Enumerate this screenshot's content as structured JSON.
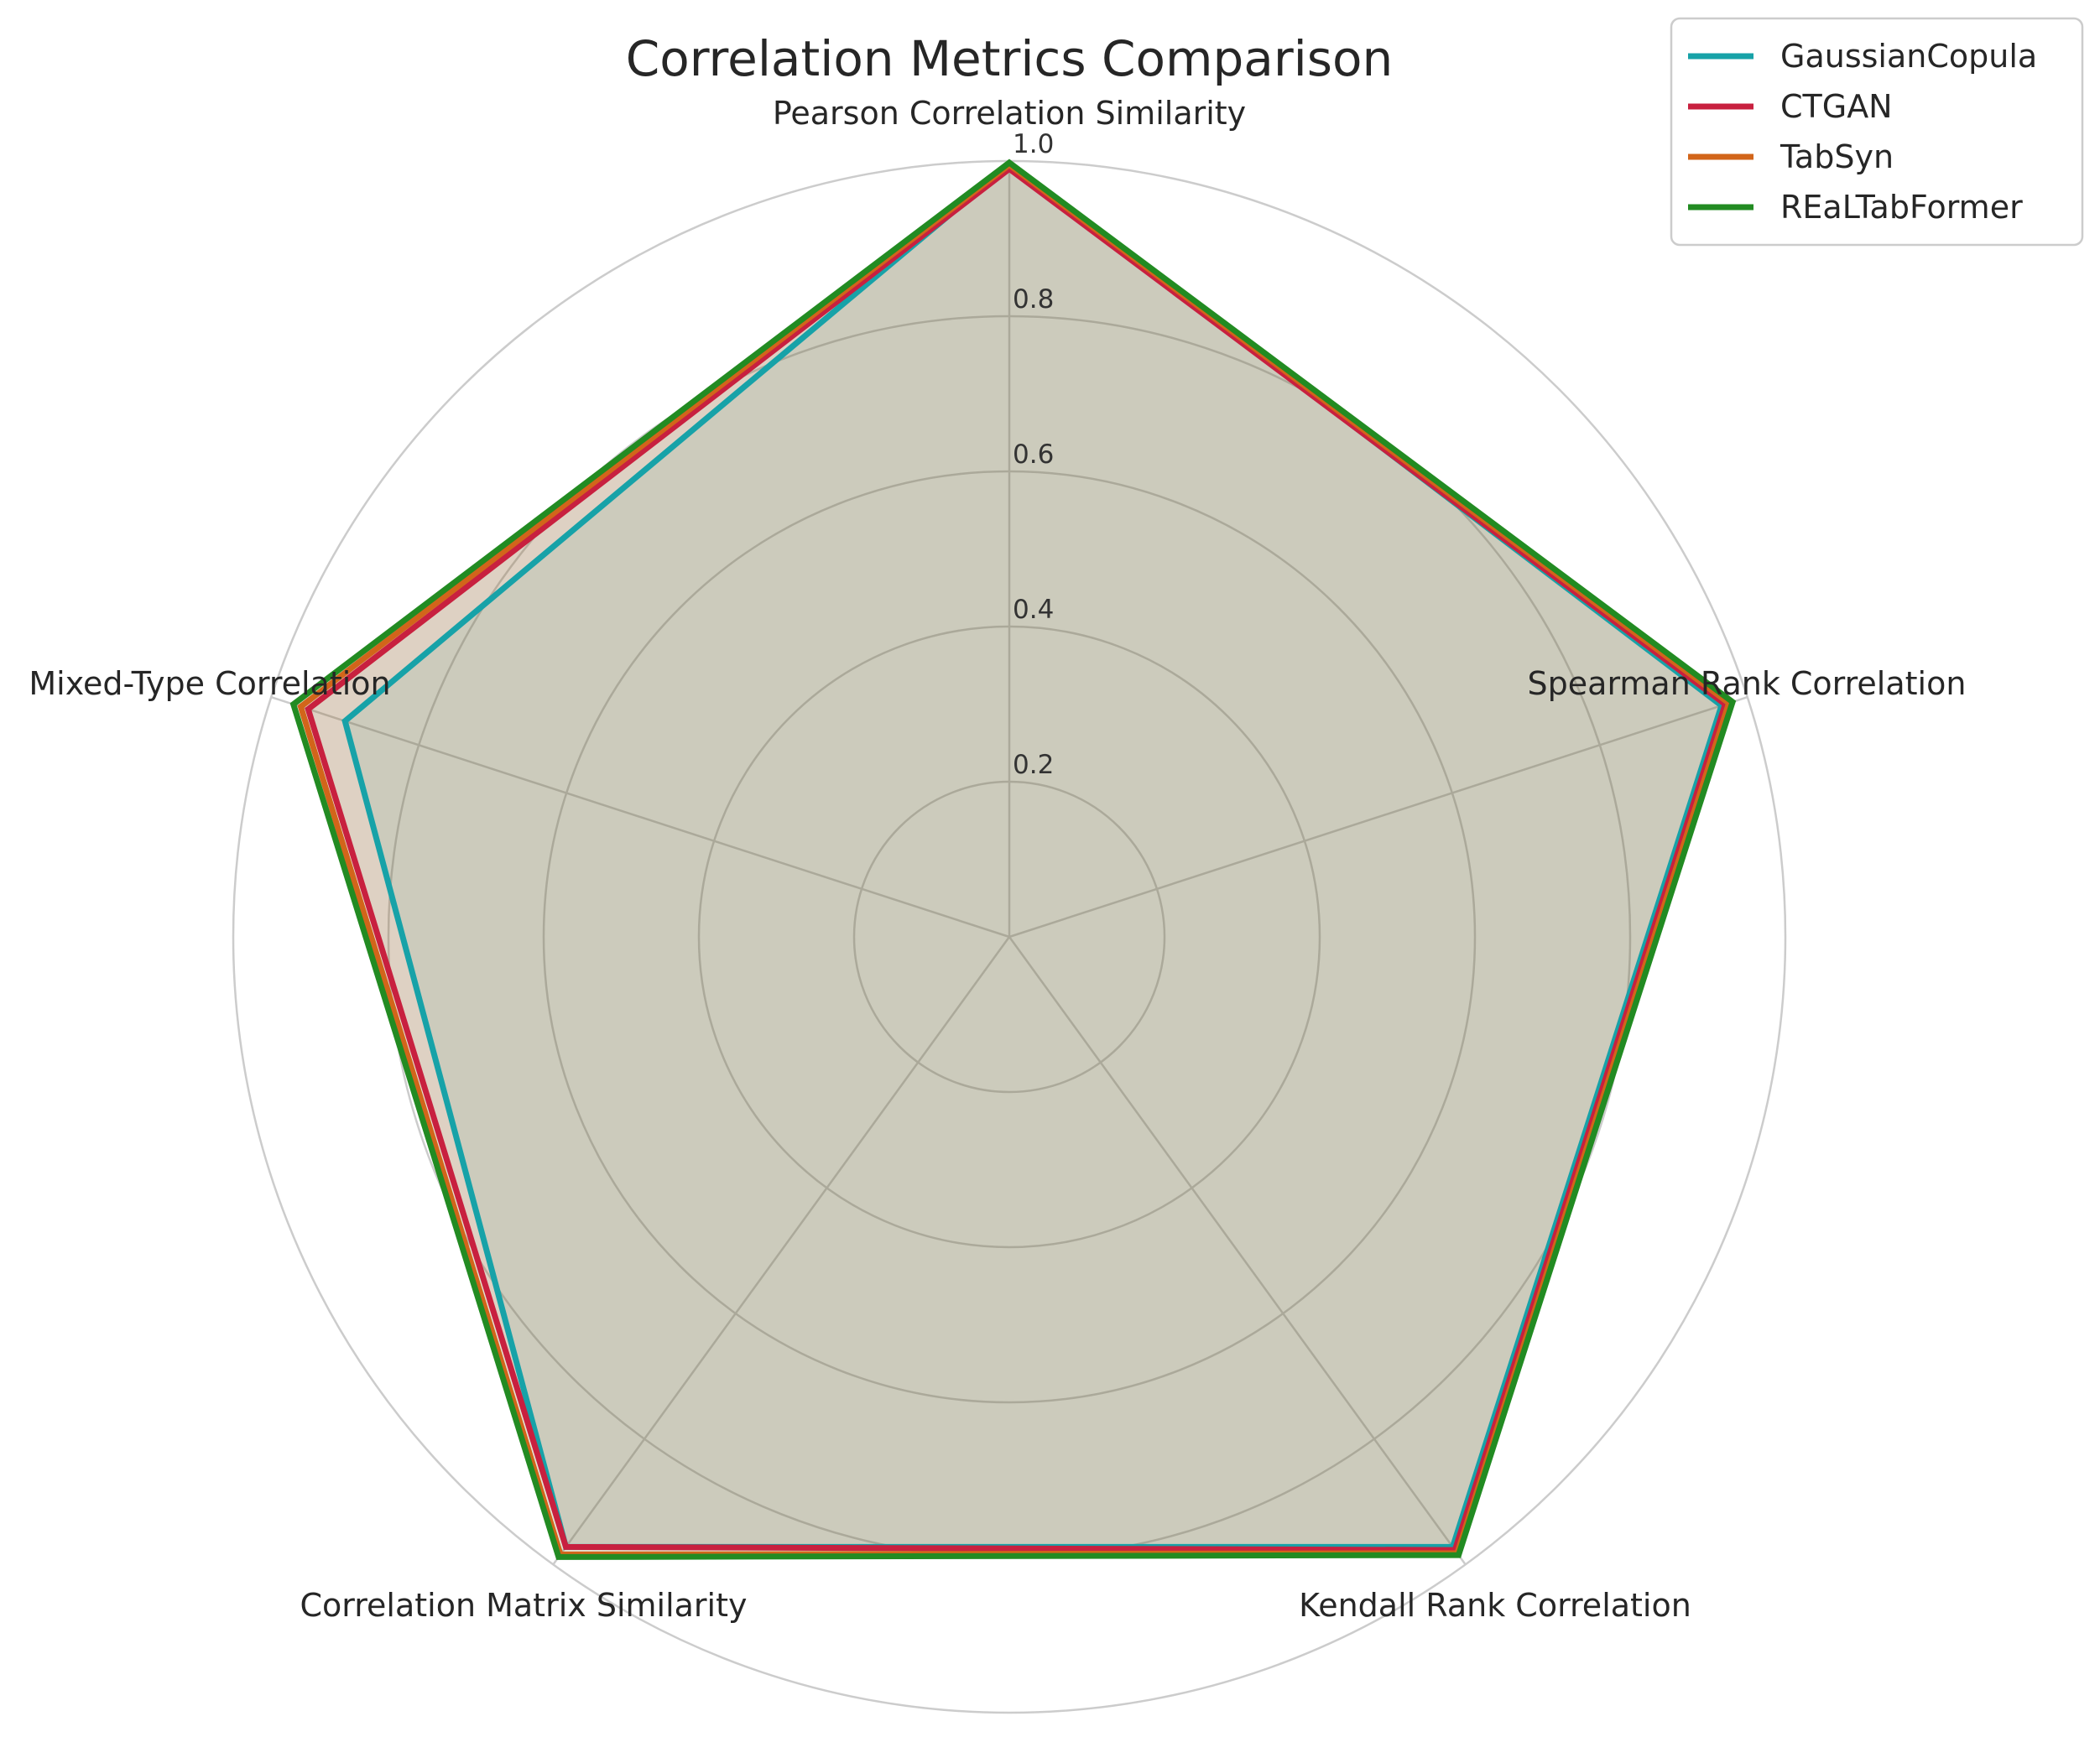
{
  "chart_data": {
    "type": "radar",
    "title": "Correlation Metrics Comparison",
    "axes": [
      "Pearson Correlation Similarity",
      "Spearman Rank Correlation",
      "Kendall Rank Correlation",
      "Correlation Matrix Similarity",
      "Mixed-Type Correlation"
    ],
    "rlim": [
      0,
      1.0
    ],
    "rticks": [
      "0.2",
      "0.4",
      "0.6",
      "0.8",
      "1.0"
    ],
    "rtick_values": [
      0.2,
      0.4,
      0.6,
      0.8,
      1.0
    ],
    "grid": true,
    "legend_position": "top-right",
    "series": [
      {
        "name": "GaussianCopula",
        "color": "#17a2a8",
        "values": [
          0.995,
          0.965,
          0.972,
          0.972,
          0.9
        ]
      },
      {
        "name": "CTGAN",
        "color": "#c8203f",
        "values": [
          0.99,
          0.97,
          0.977,
          0.972,
          0.95
        ]
      },
      {
        "name": "TabSyn",
        "color": "#d2651a",
        "values": [
          0.995,
          0.975,
          0.982,
          0.984,
          0.96
        ]
      },
      {
        "name": "REaLTabFormer",
        "color": "#228b22",
        "values": [
          0.998,
          0.98,
          0.985,
          0.988,
          0.97
        ]
      }
    ]
  }
}
